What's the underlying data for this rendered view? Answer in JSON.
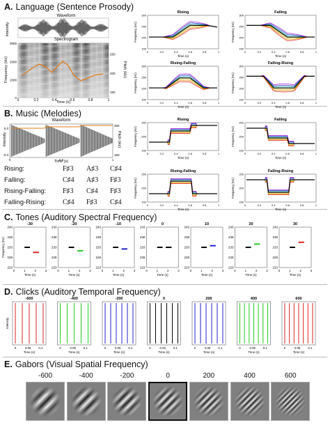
{
  "sections": {
    "A": {
      "letter": "A.",
      "title": "Language (Sentence Prosody)",
      "waveform_label": "Waveform",
      "spectrogram_label": "Spectrogram",
      "intensity_label": "Intensity",
      "freq_label": "Frequency (Hz)",
      "pitch_label": "Pitch (Hz)",
      "time_label": "Time (s)"
    },
    "B": {
      "letter": "B.",
      "title": "Music (Melodies)",
      "waveform_label": "Waveform",
      "intensity_label": "Intensity",
      "pitch_label": "Pitch (Hz)",
      "time_label": "Time (s)"
    },
    "C": {
      "letter": "C.",
      "title": "Tones (Auditory Spectral Frequency)"
    },
    "D": {
      "letter": "D.",
      "title": "Clicks (Auditory Temporal Frequency)"
    },
    "E": {
      "letter": "E.",
      "title": "Gabors (Visual Spatial Frequency)"
    }
  },
  "melodies": [
    {
      "name": "Rising:",
      "notes": [
        "F♯3",
        "A♯3",
        "C♯4"
      ]
    },
    {
      "name": "Falling:",
      "notes": [
        "C♯4",
        "A♯3",
        "F♯3"
      ]
    },
    {
      "name": "Rising-Falling:",
      "notes": [
        "F♯3",
        "C♯4",
        "F♯3"
      ]
    },
    {
      "name": "Falling-Rising:",
      "notes": [
        "C♯4",
        "F♯3",
        "C♯4"
      ]
    }
  ],
  "chart_data": [
    {
      "type": "line",
      "panel": "prosody",
      "title": "Rising",
      "ylabel": "Frequency (Hz)",
      "xlabel": "Time (s)",
      "xlim": [
        0,
        1
      ],
      "ylim": [
        150,
        300
      ],
      "contour": "rising"
    },
    {
      "type": "line",
      "panel": "prosody",
      "title": "Falling",
      "ylabel": "Frequency (Hz)",
      "xlabel": "Time (s)",
      "xlim": [
        0,
        1
      ],
      "ylim": [
        150,
        300
      ],
      "contour": "falling"
    },
    {
      "type": "line",
      "panel": "prosody",
      "title": "Rising-Falling",
      "ylabel": "Frequency (Hz)",
      "xlabel": "Time (s)",
      "xlim": [
        0,
        1
      ],
      "ylim": [
        150,
        300
      ],
      "contour": "risefall"
    },
    {
      "type": "line",
      "panel": "prosody",
      "title": "Falling-Rising",
      "ylabel": "Frequency (Hz)",
      "xlabel": "Time (s)",
      "xlim": [
        0,
        1
      ],
      "ylim": [
        150,
        300
      ],
      "contour": "fallrise"
    },
    {
      "type": "line",
      "panel": "melody",
      "title": "Rising",
      "ylabel": "Frequency (Hz)",
      "xlabel": "Time (s)",
      "xlim": [
        0,
        1
      ],
      "contour": "rising"
    },
    {
      "type": "line",
      "panel": "melody",
      "title": "Falling",
      "ylabel": "Frequency (Hz)",
      "xlabel": "Time (s)",
      "xlim": [
        0,
        1
      ],
      "contour": "falling"
    },
    {
      "type": "line",
      "panel": "melody",
      "title": "Rising-Falling",
      "ylabel": "Frequency (Hz)",
      "xlabel": "Time (s)",
      "xlim": [
        0,
        1
      ],
      "contour": "risefall"
    },
    {
      "type": "line",
      "panel": "melody",
      "title": "Falling-Rising",
      "ylabel": "Frequency (Hz)",
      "xlabel": "Time (s)",
      "xlim": [
        0,
        1
      ],
      "contour": "fallrise"
    }
  ],
  "tones": {
    "ylabel": "Frequency (Hz)",
    "xlabel": "Time (s)",
    "yticks": [
      243,
      238,
      233,
      228,
      223
    ],
    "xticks": [
      0,
      1,
      2,
      3
    ],
    "first_tone": 233,
    "panels": [
      {
        "label": "-30",
        "second": 230.5,
        "color": "#d22"
      },
      {
        "label": "-20",
        "second": 231.3,
        "color": "#2c2"
      },
      {
        "label": "-10",
        "second": 232.2,
        "color": "#22c"
      },
      {
        "label": "0",
        "second": 233,
        "color": "#000"
      },
      {
        "label": "10",
        "second": 233.8,
        "color": "#22c"
      },
      {
        "label": "20",
        "second": 234.6,
        "color": "#2c2"
      },
      {
        "label": "30",
        "second": 235.5,
        "color": "#d22"
      }
    ]
  },
  "clicks": {
    "ylabel": "Intensity",
    "xlabel": "Time (s)",
    "xticks": [
      "0",
      "0.05",
      "0.1"
    ],
    "panels": [
      {
        "label": "-600",
        "color": "#d22",
        "count": 5
      },
      {
        "label": "-400",
        "color": "#2c2",
        "count": 5
      },
      {
        "label": "-200",
        "color": "#22c",
        "count": 6
      },
      {
        "label": "0",
        "color": "#000",
        "count": 6
      },
      {
        "label": "200",
        "color": "#22c",
        "count": 6
      },
      {
        "label": "400",
        "color": "#2c2",
        "count": 7
      },
      {
        "label": "600",
        "color": "#d22",
        "count": 7
      }
    ]
  },
  "gabors": [
    {
      "label": "-600",
      "period": 13
    },
    {
      "label": "-400",
      "period": 11.5
    },
    {
      "label": "-200",
      "period": 10
    },
    {
      "label": "0",
      "period": 8.5,
      "selected": true
    },
    {
      "label": "200",
      "period": 7.2
    },
    {
      "label": "400",
      "period": 6.2
    },
    {
      "label": "600",
      "period": 5.4
    }
  ]
}
